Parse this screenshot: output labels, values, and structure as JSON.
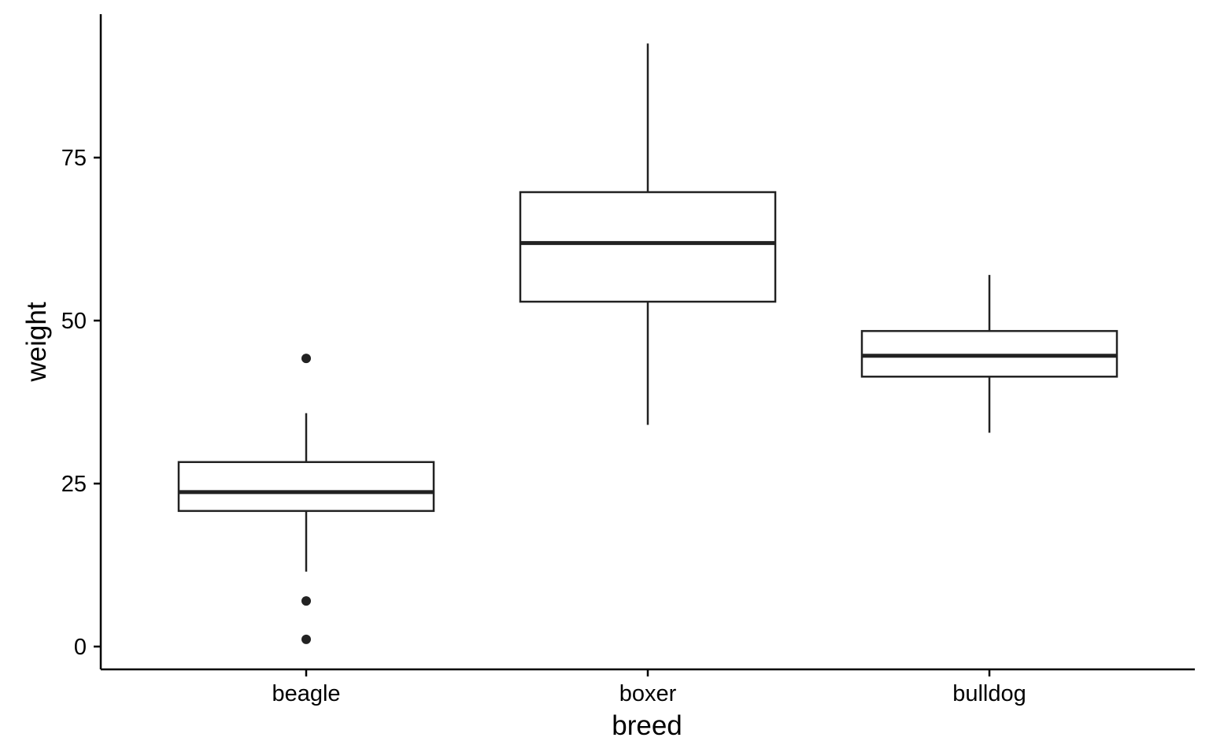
{
  "chart_data": {
    "type": "boxplot",
    "title": "",
    "xlabel": "breed",
    "ylabel": "weight",
    "categories": [
      "beagle",
      "boxer",
      "bulldog"
    ],
    "boxes": [
      {
        "category": "beagle",
        "whisker_low": 11.5,
        "q1": 20.8,
        "median": 23.7,
        "q3": 28.3,
        "whisker_high": 35.8,
        "outliers": [
          44.2,
          7.0,
          1.1
        ]
      },
      {
        "category": "boxer",
        "whisker_low": 34.0,
        "q1": 52.9,
        "median": 61.9,
        "q3": 69.7,
        "whisker_high": 92.5,
        "outliers": []
      },
      {
        "category": "bulldog",
        "whisker_low": 32.8,
        "q1": 41.4,
        "median": 44.6,
        "q3": 48.4,
        "whisker_high": 57.0,
        "outliers": []
      }
    ],
    "ylim": [
      -3.5,
      97
    ],
    "yticks": [
      0,
      25,
      50,
      75
    ],
    "ytick_labels": [
      "0",
      "25",
      "50",
      "75"
    ],
    "grid": false,
    "legend": "none",
    "colors": {
      "box_fill": "#ffffff",
      "box_stroke": "#222222",
      "axis": "#000000"
    }
  }
}
